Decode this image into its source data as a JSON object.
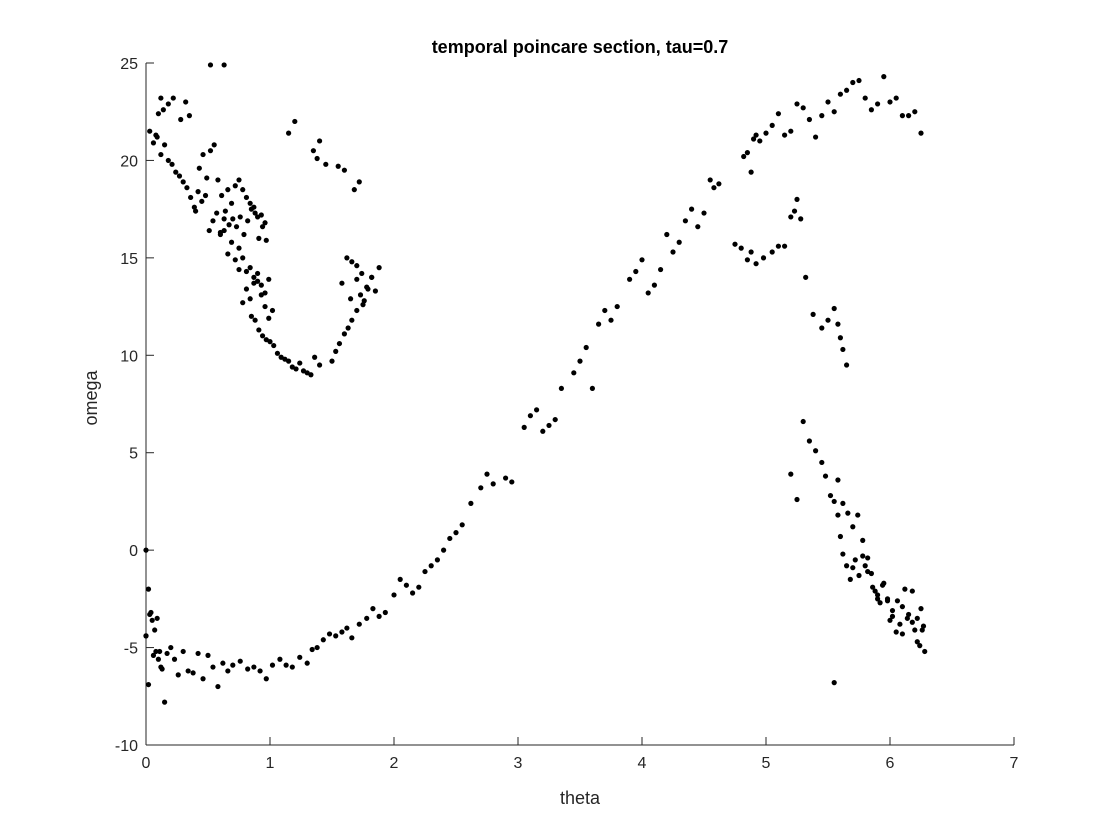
{
  "chart_data": {
    "type": "scatter",
    "title": "temporal poincare section, tau=0.7",
    "xlabel": "theta",
    "ylabel": "omega",
    "xlim": [
      0,
      7
    ],
    "ylim": [
      -10,
      25
    ],
    "xticks": [
      "0",
      "1",
      "2",
      "3",
      "4",
      "5",
      "6",
      "7"
    ],
    "yticks": [
      "-10",
      "-5",
      "0",
      "5",
      "10",
      "15",
      "20",
      "25"
    ],
    "grid": false,
    "marker_color": "#000000",
    "series": [
      {
        "x": [
          0.0,
          0.02,
          0.03,
          0.05,
          0.07,
          0.08,
          0.1,
          0.12,
          0.0,
          0.02,
          0.04,
          0.06,
          0.09,
          0.11,
          0.13,
          0.15,
          0.17,
          0.2,
          0.23,
          0.26,
          0.3,
          0.34,
          0.38,
          0.42,
          0.46,
          0.5,
          0.54,
          0.58,
          0.62,
          0.66,
          0.7,
          0.76,
          0.82,
          0.87,
          0.92,
          0.97,
          1.02,
          1.08,
          1.13,
          1.18,
          1.24,
          1.3,
          1.34,
          1.38,
          1.43,
          1.48,
          1.53,
          1.58,
          1.62,
          1.66,
          1.72,
          1.78,
          1.83,
          1.88,
          1.93,
          2.0,
          2.05,
          2.1,
          2.15,
          2.2,
          2.25,
          2.3,
          2.35,
          2.4,
          2.45,
          2.5,
          2.55,
          2.62,
          2.7,
          2.75,
          2.8,
          2.9,
          2.95,
          3.05,
          3.1,
          3.15,
          3.2,
          3.25,
          3.3,
          3.35,
          3.45,
          3.5,
          3.55,
          3.6,
          3.65,
          3.7,
          3.75,
          3.8,
          3.9,
          3.95,
          4.0,
          4.05,
          4.1,
          4.15,
          4.2,
          4.25,
          4.3,
          4.35,
          4.4,
          4.45,
          4.5,
          4.55,
          4.58,
          4.62,
          4.75,
          4.82,
          4.85,
          4.88,
          4.9,
          4.92,
          4.95,
          5.0,
          5.05,
          5.1,
          5.15,
          5.2,
          5.25,
          5.3,
          5.35,
          5.4,
          5.45,
          5.5,
          5.55,
          5.6,
          5.65,
          5.7,
          5.75,
          5.8,
          5.85,
          5.9,
          5.95,
          6.0,
          6.05,
          6.1,
          6.15,
          6.2,
          6.25,
          4.8,
          4.85,
          4.88,
          4.92,
          4.98,
          5.05,
          5.1,
          5.15,
          5.2,
          5.23,
          5.25,
          5.28,
          5.32,
          5.38,
          5.45,
          5.5,
          5.55,
          5.58,
          5.6,
          5.62,
          5.65,
          5.2,
          5.25,
          5.3,
          5.35,
          5.4,
          5.45,
          5.48,
          5.52,
          5.55,
          5.58,
          5.6,
          5.62,
          5.65,
          5.68,
          5.7,
          5.72,
          5.75,
          5.78,
          5.8,
          5.82,
          5.85,
          5.88,
          5.9,
          5.92,
          5.95,
          5.98,
          6.0,
          6.02,
          6.05,
          6.08,
          6.1,
          6.12,
          6.15,
          6.18,
          6.2,
          6.22,
          6.25,
          6.27,
          6.28,
          5.55,
          5.58,
          5.62,
          5.66,
          5.7,
          5.74,
          5.78,
          5.82,
          5.86,
          5.9,
          5.94,
          5.98,
          6.02,
          6.06,
          6.1,
          6.14,
          6.18,
          6.22,
          6.26,
          6.24,
          0.0,
          0.03,
          0.06,
          0.09,
          0.12,
          0.15,
          0.18,
          0.21,
          0.24,
          0.27,
          0.3,
          0.33,
          0.36,
          0.39,
          0.42,
          0.45,
          0.48,
          0.51,
          0.54,
          0.57,
          0.6,
          0.63,
          0.66,
          0.69,
          0.72,
          0.75,
          0.78,
          0.81,
          0.84,
          0.87,
          0.9,
          0.93,
          0.96,
          0.4,
          0.43,
          0.46,
          0.49,
          0.52,
          0.55,
          0.58,
          0.61,
          0.64,
          0.67,
          0.7,
          0.73,
          0.76,
          0.79,
          0.82,
          0.85,
          0.88,
          0.91,
          0.94,
          0.97,
          0.6,
          0.63,
          0.66,
          0.69,
          0.72,
          0.75,
          0.78,
          0.81,
          0.84,
          0.87,
          0.9,
          0.93,
          0.96,
          0.99,
          0.75,
          0.78,
          0.81,
          0.84,
          0.87,
          0.9,
          0.93,
          0.96,
          0.99,
          1.02,
          0.85,
          0.88,
          0.91,
          0.94,
          0.97,
          1.0,
          1.03,
          1.06,
          1.09,
          1.12,
          1.15,
          1.18,
          1.21,
          1.24,
          1.27,
          1.3,
          1.33,
          1.36,
          1.4,
          1.5,
          1.53,
          1.56,
          1.6,
          1.63,
          1.66,
          1.7,
          1.73,
          1.76,
          1.79,
          1.82,
          1.85,
          1.88,
          1.58,
          1.62,
          1.66,
          1.7,
          1.74,
          1.78,
          1.82,
          1.65,
          1.7,
          1.75,
          1.15,
          1.2,
          1.35,
          1.38,
          1.4,
          1.45,
          1.55,
          1.6,
          1.68,
          1.72,
          0.52,
          0.63,
          0.28,
          0.32,
          0.35,
          0.18,
          0.22,
          0.1,
          0.12,
          0.14,
          0.08
        ],
        "y": [
          0.0,
          -2.0,
          -3.3,
          -3.6,
          -4.1,
          -5.2,
          -5.6,
          -6.0,
          -4.4,
          -6.9,
          -3.2,
          -5.4,
          -3.5,
          -5.2,
          -6.1,
          -7.8,
          -5.3,
          -5.0,
          -5.6,
          -6.4,
          -5.2,
          -6.2,
          -6.3,
          -5.3,
          -6.6,
          -5.4,
          -6.0,
          -7.0,
          -5.8,
          -6.2,
          -5.9,
          -5.7,
          -6.1,
          -6.0,
          -6.2,
          -6.6,
          -5.9,
          -5.6,
          -5.9,
          -6.0,
          -5.5,
          -5.8,
          -5.1,
          -5.0,
          -4.6,
          -4.3,
          -4.4,
          -4.2,
          -4.0,
          -4.5,
          -3.8,
          -3.5,
          -3.0,
          -3.4,
          -3.2,
          -2.3,
          -1.5,
          -1.8,
          -2.2,
          -1.9,
          -1.1,
          -0.8,
          -0.5,
          0.0,
          0.6,
          0.9,
          1.3,
          2.4,
          3.2,
          3.9,
          3.4,
          3.7,
          3.5,
          6.3,
          6.9,
          7.2,
          6.1,
          6.4,
          6.7,
          8.3,
          9.1,
          9.7,
          10.4,
          8.3,
          11.6,
          12.3,
          11.8,
          12.5,
          13.9,
          14.3,
          14.9,
          13.2,
          13.6,
          14.4,
          16.2,
          15.3,
          15.8,
          16.9,
          17.5,
          16.6,
          17.3,
          19.0,
          18.6,
          18.8,
          15.7,
          20.2,
          20.4,
          19.4,
          21.1,
          21.3,
          21.0,
          21.4,
          21.8,
          22.4,
          21.3,
          21.5,
          22.9,
          22.7,
          22.1,
          21.2,
          22.3,
          23.0,
          22.5,
          23.4,
          23.6,
          24.0,
          24.1,
          23.2,
          22.6,
          22.9,
          24.3,
          23.0,
          23.2,
          22.3,
          22.3,
          22.5,
          21.4,
          15.5,
          14.9,
          15.3,
          14.7,
          15.0,
          15.3,
          15.6,
          15.6,
          17.1,
          17.4,
          18.0,
          17.0,
          14.0,
          12.1,
          11.4,
          11.8,
          12.4,
          11.6,
          10.9,
          10.3,
          9.5,
          3.9,
          2.6,
          6.6,
          5.6,
          5.1,
          4.5,
          3.8,
          2.8,
          2.5,
          1.8,
          0.7,
          -0.2,
          -0.8,
          -1.5,
          -0.9,
          -0.5,
          -1.3,
          -0.3,
          -0.8,
          -1.1,
          -1.2,
          -2.1,
          -2.5,
          -2.7,
          -1.7,
          -2.6,
          -3.6,
          -3.1,
          -4.2,
          -3.8,
          -2.9,
          -2.0,
          -3.3,
          -3.7,
          -4.1,
          -3.5,
          -3.0,
          -3.9,
          -5.2,
          -6.8,
          3.6,
          2.4,
          1.9,
          1.2,
          1.8,
          0.5,
          -0.4,
          -1.9,
          -2.3,
          -1.8,
          -2.5,
          -3.4,
          -2.6,
          -4.3,
          -3.5,
          -2.1,
          -4.7,
          -4.1,
          -4.9,
          -4.4,
          21.5,
          20.9,
          21.2,
          20.3,
          20.8,
          20.0,
          19.8,
          19.4,
          19.2,
          18.9,
          18.6,
          18.1,
          17.6,
          18.4,
          17.9,
          18.2,
          16.4,
          16.9,
          17.3,
          16.2,
          17.0,
          18.5,
          17.8,
          18.7,
          19.0,
          18.5,
          18.1,
          17.8,
          17.6,
          17.1,
          17.2,
          16.8,
          17.4,
          19.6,
          20.3,
          19.1,
          20.5,
          20.8,
          19.0,
          18.2,
          17.4,
          16.7,
          17.0,
          16.6,
          17.1,
          16.2,
          16.9,
          17.5,
          17.3,
          16.0,
          16.6,
          15.9,
          16.3,
          16.4,
          15.2,
          15.8,
          14.9,
          15.5,
          15.0,
          14.3,
          14.5,
          14.0,
          13.8,
          13.6,
          13.2,
          13.9,
          14.4,
          12.7,
          13.4,
          12.9,
          13.7,
          14.2,
          13.1,
          12.5,
          11.9,
          12.3,
          12.0,
          11.8,
          11.3,
          11.0,
          10.8,
          10.7,
          10.5,
          10.1,
          9.9,
          9.8,
          9.7,
          9.4,
          9.3,
          9.6,
          9.2,
          9.1,
          9.0,
          9.9,
          9.5,
          9.7,
          10.2,
          10.6,
          11.1,
          11.4,
          11.8,
          12.3,
          13.1,
          12.8,
          13.4,
          14.0,
          13.3,
          14.5,
          13.7,
          15.0,
          14.8,
          13.9,
          14.2,
          13.5,
          14.0,
          12.9,
          14.6,
          12.6,
          21.4,
          22.0,
          20.5,
          20.1,
          21.0,
          19.8,
          19.7,
          19.5,
          18.5,
          18.9,
          24.9,
          24.9,
          22.1,
          23.0,
          22.3,
          22.9,
          23.2,
          22.4,
          23.2,
          22.6,
          21.3
        ]
      }
    ]
  }
}
